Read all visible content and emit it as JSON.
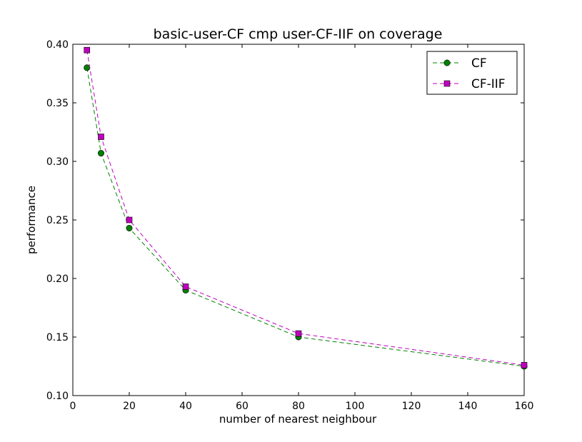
{
  "chart_data": {
    "type": "line",
    "title": "basic-user-CF cmp user-CF-IIF on coverage",
    "xlabel": "number of nearest neighbour",
    "ylabel": "performance",
    "xlim": [
      0,
      160
    ],
    "ylim": [
      0.1,
      0.4
    ],
    "xticks": [
      0,
      20,
      40,
      60,
      80,
      100,
      120,
      140,
      160
    ],
    "xtick_labels": [
      "0",
      "20",
      "40",
      "60",
      "80",
      "100",
      "120",
      "140",
      "160"
    ],
    "yticks": [
      0.1,
      0.15,
      0.2,
      0.25,
      0.3,
      0.35,
      0.4
    ],
    "ytick_labels": [
      "0.10",
      "0.15",
      "0.20",
      "0.25",
      "0.30",
      "0.35",
      "0.40"
    ],
    "grid": false,
    "legend_position": "top-right",
    "x": [
      5,
      10,
      20,
      40,
      80,
      160
    ],
    "series": [
      {
        "name": "CF",
        "values": [
          0.38,
          0.307,
          0.243,
          0.19,
          0.15,
          0.125
        ],
        "color": "#008000",
        "marker": "circle",
        "line_style": "dashed"
      },
      {
        "name": "CF-IIF",
        "values": [
          0.395,
          0.321,
          0.25,
          0.193,
          0.153,
          0.126
        ],
        "color": "#bf00bf",
        "marker": "square",
        "line_style": "dashed"
      }
    ]
  }
}
